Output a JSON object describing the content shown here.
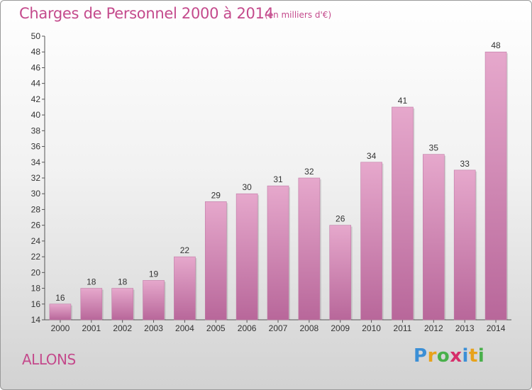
{
  "header": {
    "title": "Charges de Personnel 2000 à 2014",
    "unit": "(en milliers d'€)"
  },
  "footer": {
    "place": "ALLONS",
    "logo_letters": [
      "P",
      "r",
      "o",
      "x",
      "i",
      "t",
      "i"
    ],
    "logo_colors": [
      "#3b8fd6",
      "#e8a21b",
      "#49b04b",
      "#d62f6b",
      "#3b8fd6",
      "#e8a21b",
      "#49b04b"
    ]
  },
  "colors": {
    "bar_top": "#e6a8cc",
    "bar_bottom": "#b8679a",
    "title": "#c44a8c"
  },
  "chart_data": {
    "type": "bar",
    "categories": [
      "2000",
      "2001",
      "2002",
      "2003",
      "2004",
      "2005",
      "2006",
      "2007",
      "2008",
      "2009",
      "2010",
      "2011",
      "2012",
      "2013",
      "2014"
    ],
    "values": [
      16,
      18,
      18,
      19,
      22,
      29,
      30,
      31,
      32,
      26,
      34,
      41,
      35,
      33,
      48
    ],
    "ylim": [
      14,
      50
    ],
    "yticks": [
      14,
      16,
      18,
      20,
      22,
      24,
      26,
      28,
      30,
      32,
      34,
      36,
      38,
      40,
      42,
      44,
      46,
      48,
      50
    ],
    "xlabel": "",
    "ylabel": "",
    "grid": false,
    "legend": "none"
  }
}
